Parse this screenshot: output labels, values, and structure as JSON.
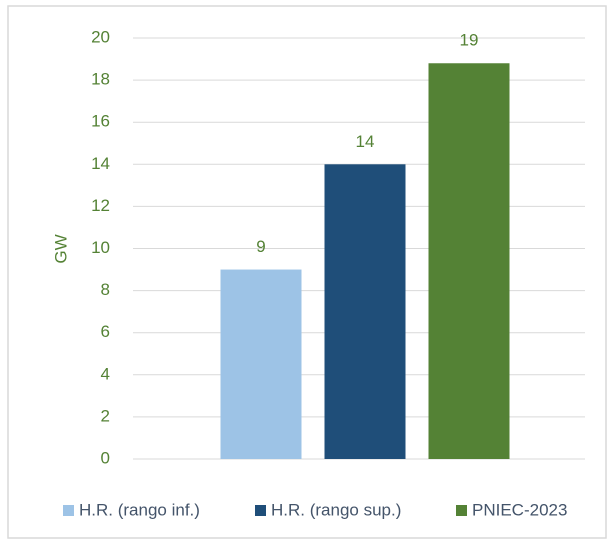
{
  "chart_data": {
    "type": "bar",
    "y_label": "GW",
    "series": [
      {
        "name": "H.R. (rango inf.)",
        "color": "#9dc3e6",
        "values": [
          9
        ],
        "value_labels": [
          "9"
        ]
      },
      {
        "name": "H.R. (rango sup.)",
        "color": "#1f4e79",
        "values": [
          14
        ],
        "value_labels": [
          "14"
        ]
      },
      {
        "name": "PNIEC-2023",
        "color": "#548235",
        "values": [
          18.8
        ],
        "value_labels": [
          "19"
        ]
      }
    ],
    "ylim": [
      0,
      20
    ],
    "yticks": [
      0,
      2,
      4,
      6,
      8,
      10,
      12,
      14,
      16,
      18,
      20
    ],
    "grid": true,
    "legend": "bottom"
  }
}
